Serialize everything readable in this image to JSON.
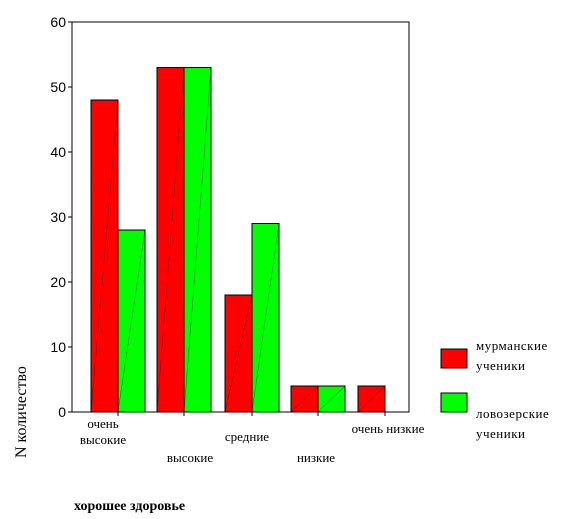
{
  "chart_data": {
    "type": "bar",
    "categories": [
      [
        "очень",
        "высокие"
      ],
      [
        "высокие"
      ],
      [
        "средние"
      ],
      [
        "низкие"
      ],
      [
        "очень низкие"
      ]
    ],
    "series": [
      {
        "name": [
          "мурманские",
          "ученики"
        ],
        "color": "#ff0000",
        "values": [
          48,
          53,
          18,
          4,
          4
        ]
      },
      {
        "name": [
          "ловозерские",
          "ученики"
        ],
        "color": "#00ff00",
        "values": [
          28,
          53,
          29,
          4,
          0
        ]
      }
    ],
    "ylabel": "N количество",
    "xlabel": "хорошее здоровье",
    "ylim": [
      0,
      60
    ],
    "yticks": [
      0,
      10,
      20,
      30,
      40,
      50,
      60
    ],
    "grid": false,
    "legend": "right"
  }
}
